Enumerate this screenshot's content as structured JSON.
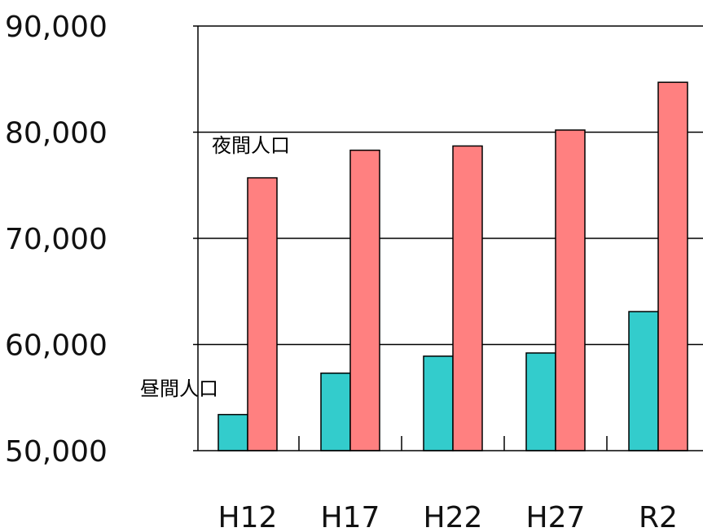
{
  "chart_data": {
    "type": "bar",
    "categories": [
      "H12",
      "H17",
      "H22",
      "H27",
      "R2"
    ],
    "series": [
      {
        "name": "昼間人口",
        "color": "#33cccc",
        "values": [
          53400,
          57300,
          58900,
          59200,
          63100
        ]
      },
      {
        "name": "夜間人口",
        "color": "#ff8080",
        "values": [
          75700,
          78300,
          78700,
          80200,
          84700
        ]
      }
    ],
    "ylim": [
      50000,
      90000
    ],
    "y_ticks": [
      50000,
      60000,
      70000,
      80000,
      90000
    ],
    "y_tick_labels": [
      "50,000",
      "60,000",
      "70,000",
      "80,000",
      "90,000"
    ],
    "grid": true,
    "legend": "inline labels"
  }
}
